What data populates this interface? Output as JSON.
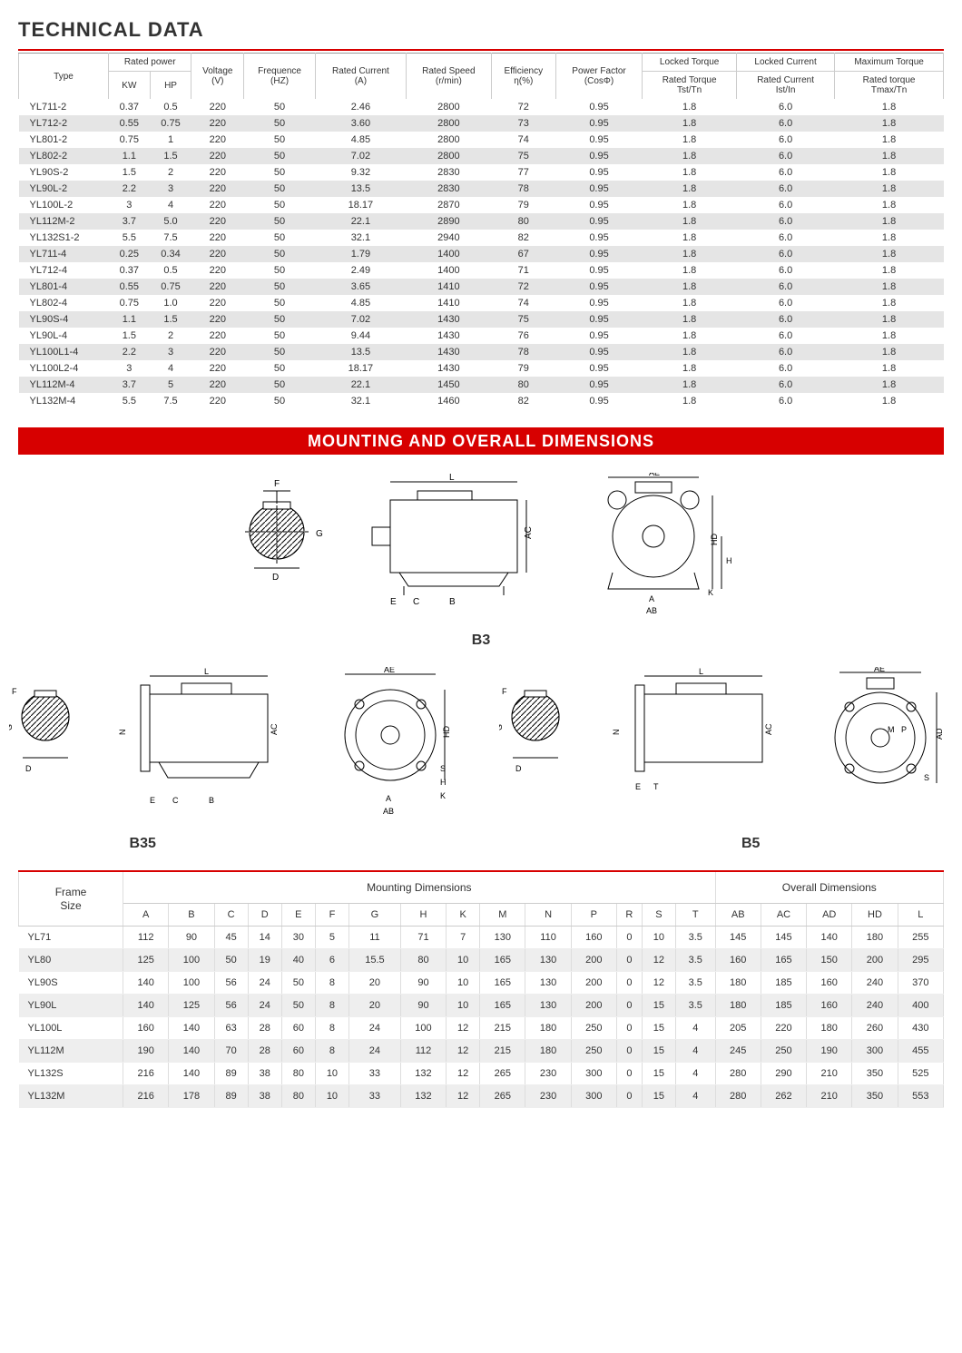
{
  "titles": {
    "tech": "TECHNICAL DATA",
    "mounting": "MOUNTING AND OVERALL DIMENSIONS"
  },
  "diagram_labels": {
    "b3": "B3",
    "b35": "B35",
    "b5": "B5"
  },
  "tech_headers": {
    "type": "Type",
    "rated_power": "Rated power",
    "kw": "KW",
    "hp": "HP",
    "voltage": "Voltage\n(V)",
    "freq": "Frequence\n(HZ)",
    "current": "Rated Current\n(A)",
    "speed": "Rated Speed\n(r/min)",
    "eff": "Efficiency\nη(%)",
    "pf": "Power Factor\n(CosΦ)",
    "locked_t": "Locked Torque",
    "locked_t_sub": "Rated Torque\nTst/Tn",
    "locked_c": "Locked  Current",
    "locked_c_sub": "Rated Current\nIst/In",
    "max_t": "Maximum Torque",
    "max_t_sub": "Rated torque\nTmax/Tn"
  },
  "tech_rows": [
    [
      "YL711-2",
      "0.37",
      "0.5",
      "220",
      "50",
      "2.46",
      "2800",
      "72",
      "0.95",
      "1.8",
      "6.0",
      "1.8"
    ],
    [
      "YL712-2",
      "0.55",
      "0.75",
      "220",
      "50",
      "3.60",
      "2800",
      "73",
      "0.95",
      "1.8",
      "6.0",
      "1.8"
    ],
    [
      "YL801-2",
      "0.75",
      "1",
      "220",
      "50",
      "4.85",
      "2800",
      "74",
      "0.95",
      "1.8",
      "6.0",
      "1.8"
    ],
    [
      "YL802-2",
      "1.1",
      "1.5",
      "220",
      "50",
      "7.02",
      "2800",
      "75",
      "0.95",
      "1.8",
      "6.0",
      "1.8"
    ],
    [
      "YL90S-2",
      "1.5",
      "2",
      "220",
      "50",
      "9.32",
      "2830",
      "77",
      "0.95",
      "1.8",
      "6.0",
      "1.8"
    ],
    [
      "YL90L-2",
      "2.2",
      "3",
      "220",
      "50",
      "13.5",
      "2830",
      "78",
      "0.95",
      "1.8",
      "6.0",
      "1.8"
    ],
    [
      "YL100L-2",
      "3",
      "4",
      "220",
      "50",
      "18.17",
      "2870",
      "79",
      "0.95",
      "1.8",
      "6.0",
      "1.8"
    ],
    [
      "YL112M-2",
      "3.7",
      "5.0",
      "220",
      "50",
      "22.1",
      "2890",
      "80",
      "0.95",
      "1.8",
      "6.0",
      "1.8"
    ],
    [
      "YL132S1-2",
      "5.5",
      "7.5",
      "220",
      "50",
      "32.1",
      "2940",
      "82",
      "0.95",
      "1.8",
      "6.0",
      "1.8"
    ],
    [
      "YL711-4",
      "0.25",
      "0.34",
      "220",
      "50",
      "1.79",
      "1400",
      "67",
      "0.95",
      "1.8",
      "6.0",
      "1.8"
    ],
    [
      "YL712-4",
      "0.37",
      "0.5",
      "220",
      "50",
      "2.49",
      "1400",
      "71",
      "0.95",
      "1.8",
      "6.0",
      "1.8"
    ],
    [
      "YL801-4",
      "0.55",
      "0.75",
      "220",
      "50",
      "3.65",
      "1410",
      "72",
      "0.95",
      "1.8",
      "6.0",
      "1.8"
    ],
    [
      "YL802-4",
      "0.75",
      "1.0",
      "220",
      "50",
      "4.85",
      "1410",
      "74",
      "0.95",
      "1.8",
      "6.0",
      "1.8"
    ],
    [
      "YL90S-4",
      "1.1",
      "1.5",
      "220",
      "50",
      "7.02",
      "1430",
      "75",
      "0.95",
      "1.8",
      "6.0",
      "1.8"
    ],
    [
      "YL90L-4",
      "1.5",
      "2",
      "220",
      "50",
      "9.44",
      "1430",
      "76",
      "0.95",
      "1.8",
      "6.0",
      "1.8"
    ],
    [
      "YL100L1-4",
      "2.2",
      "3",
      "220",
      "50",
      "13.5",
      "1430",
      "78",
      "0.95",
      "1.8",
      "6.0",
      "1.8"
    ],
    [
      "YL100L2-4",
      "3",
      "4",
      "220",
      "50",
      "18.17",
      "1430",
      "79",
      "0.95",
      "1.8",
      "6.0",
      "1.8"
    ],
    [
      "YL112M-4",
      "3.7",
      "5",
      "220",
      "50",
      "22.1",
      "1450",
      "80",
      "0.95",
      "1.8",
      "6.0",
      "1.8"
    ],
    [
      "YL132M-4",
      "5.5",
      "7.5",
      "220",
      "50",
      "32.1",
      "1460",
      "82",
      "0.95",
      "1.8",
      "6.0",
      "1.8"
    ]
  ],
  "dim_headers": {
    "frame": "Frame\nSize",
    "mounting": "Mounting Dimensions",
    "overall": "Overall Dimensions",
    "cols": [
      "A",
      "B",
      "C",
      "D",
      "E",
      "F",
      "G",
      "H",
      "K",
      "M",
      "N",
      "P",
      "R",
      "S",
      "T",
      "AB",
      "AC",
      "AD",
      "HD",
      "L"
    ]
  },
  "dim_rows": [
    [
      "YL71",
      "112",
      "90",
      "45",
      "14",
      "30",
      "5",
      "11",
      "71",
      "7",
      "130",
      "110",
      "160",
      "0",
      "10",
      "3.5",
      "145",
      "145",
      "140",
      "180",
      "255"
    ],
    [
      "YL80",
      "125",
      "100",
      "50",
      "19",
      "40",
      "6",
      "15.5",
      "80",
      "10",
      "165",
      "130",
      "200",
      "0",
      "12",
      "3.5",
      "160",
      "165",
      "150",
      "200",
      "295"
    ],
    [
      "YL90S",
      "140",
      "100",
      "56",
      "24",
      "50",
      "8",
      "20",
      "90",
      "10",
      "165",
      "130",
      "200",
      "0",
      "12",
      "3.5",
      "180",
      "185",
      "160",
      "240",
      "370"
    ],
    [
      "YL90L",
      "140",
      "125",
      "56",
      "24",
      "50",
      "8",
      "20",
      "90",
      "10",
      "165",
      "130",
      "200",
      "0",
      "15",
      "3.5",
      "180",
      "185",
      "160",
      "240",
      "400"
    ],
    [
      "YL100L",
      "160",
      "140",
      "63",
      "28",
      "60",
      "8",
      "24",
      "100",
      "12",
      "215",
      "180",
      "250",
      "0",
      "15",
      "4",
      "205",
      "220",
      "180",
      "260",
      "430"
    ],
    [
      "YL112M",
      "190",
      "140",
      "70",
      "28",
      "60",
      "8",
      "24",
      "112",
      "12",
      "215",
      "180",
      "250",
      "0",
      "15",
      "4",
      "245",
      "250",
      "190",
      "300",
      "455"
    ],
    [
      "YL132S",
      "216",
      "140",
      "89",
      "38",
      "80",
      "10",
      "33",
      "132",
      "12",
      "265",
      "230",
      "300",
      "0",
      "15",
      "4",
      "280",
      "290",
      "210",
      "350",
      "525"
    ],
    [
      "YL132M",
      "216",
      "178",
      "89",
      "38",
      "80",
      "10",
      "33",
      "132",
      "12",
      "265",
      "230",
      "300",
      "0",
      "15",
      "4",
      "280",
      "262",
      "210",
      "350",
      "553"
    ]
  ],
  "colors": {
    "red": "#d70000",
    "row_alt": "#e5e5e5",
    "border": "#ccc"
  },
  "diagram_dim_labels": [
    "F",
    "G",
    "D",
    "L",
    "E",
    "C",
    "B",
    "AC",
    "AE",
    "A",
    "AB",
    "H",
    "K",
    "HD",
    "N",
    "AD",
    "M",
    "P",
    "S",
    "T"
  ]
}
